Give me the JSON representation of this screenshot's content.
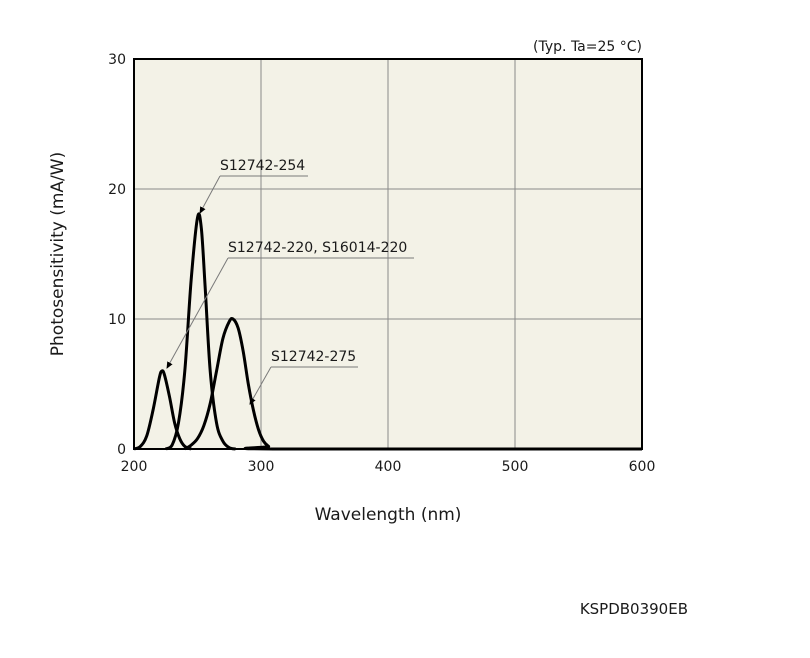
{
  "chart_data": {
    "type": "line",
    "title": "",
    "note": "(Typ. Ta=25 °C)",
    "xlabel": "Wavelength (nm)",
    "ylabel": "Photosensitivity (mA/W)",
    "xlim": [
      200,
      600
    ],
    "ylim": [
      0,
      30
    ],
    "xticks": [
      200,
      300,
      400,
      500,
      600
    ],
    "yticks": [
      0,
      10,
      20,
      30
    ],
    "grid": true,
    "legend": "none",
    "series": [
      {
        "name": "S12742-220, S16014-220",
        "points": [
          [
            200,
            0
          ],
          [
            205,
            0.2
          ],
          [
            210,
            1.0
          ],
          [
            215,
            3.0
          ],
          [
            220,
            5.5
          ],
          [
            222,
            6.0
          ],
          [
            224,
            5.7
          ],
          [
            228,
            4.0
          ],
          [
            232,
            2.0
          ],
          [
            236,
            0.8
          ],
          [
            240,
            0.2
          ],
          [
            245,
            0
          ]
        ]
      },
      {
        "name": "S12742-254",
        "points": [
          [
            225,
            0
          ],
          [
            230,
            0.3
          ],
          [
            235,
            2.0
          ],
          [
            240,
            6.0
          ],
          [
            245,
            13.0
          ],
          [
            250,
            17.8
          ],
          [
            253,
            17.0
          ],
          [
            256,
            12.5
          ],
          [
            260,
            6.0
          ],
          [
            265,
            2.0
          ],
          [
            270,
            0.6
          ],
          [
            275,
            0.1
          ],
          [
            280,
            0
          ]
        ]
      },
      {
        "name": "S12742-275",
        "points": [
          [
            240,
            0
          ],
          [
            245,
            0.3
          ],
          [
            250,
            0.8
          ],
          [
            255,
            1.8
          ],
          [
            260,
            3.5
          ],
          [
            265,
            6.0
          ],
          [
            270,
            8.5
          ],
          [
            275,
            9.8
          ],
          [
            278,
            10.0
          ],
          [
            282,
            9.3
          ],
          [
            286,
            7.5
          ],
          [
            290,
            5.0
          ],
          [
            294,
            3.0
          ],
          [
            298,
            1.5
          ],
          [
            302,
            0.6
          ],
          [
            306,
            0.2
          ],
          [
            310,
            0
          ],
          [
            600,
            0
          ]
        ]
      }
    ],
    "annotations": [
      {
        "text": "S12742-254",
        "target_series": 1
      },
      {
        "text": "S12742-220, S16014-220",
        "target_series": 0
      },
      {
        "text": "S12742-275",
        "target_series": 2
      }
    ],
    "figure_code": "KSPDB0390EB",
    "colors": {
      "plot_bg": "#f3f2e7",
      "line": "#000000",
      "grid": "#8a8a8a",
      "leader": "#7a7a7a"
    }
  }
}
